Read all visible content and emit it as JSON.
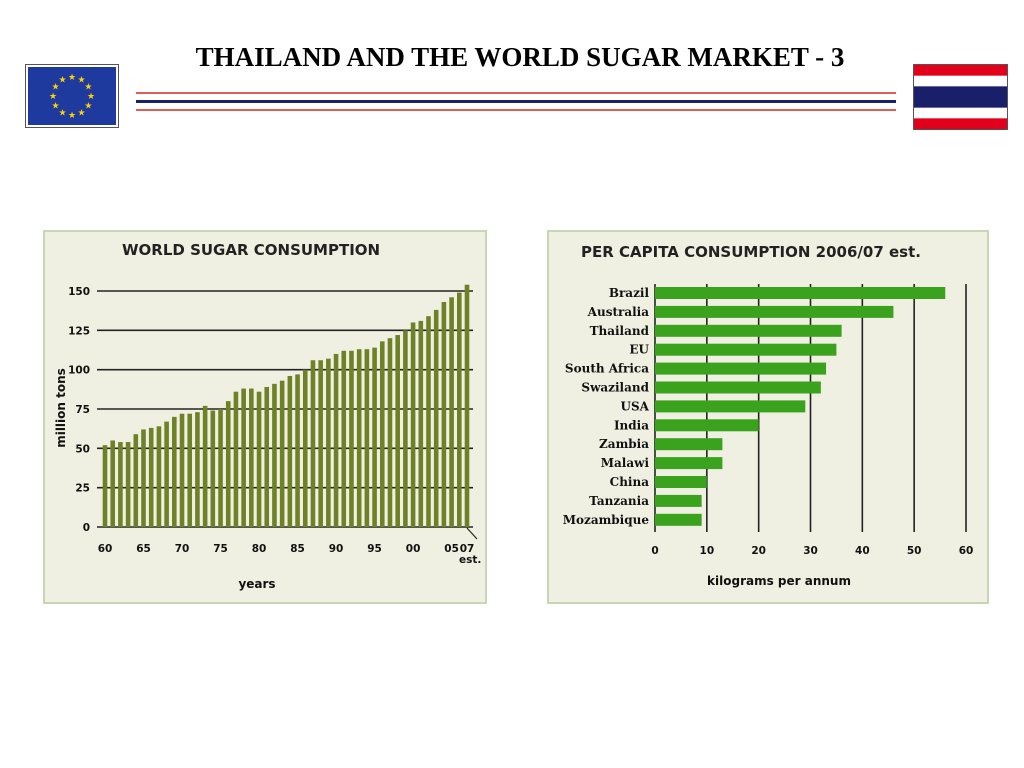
{
  "page": {
    "title": "THAILAND AND THE WORLD SUGAR MARKET - 3"
  },
  "colors": {
    "eu_blue": "#1f3a9e",
    "eu_star": "#ffd200",
    "thai_red": "#e3001b",
    "thai_blue": "#1a1f6a",
    "rule_red": "#d9261c",
    "rule_blue": "#1a1f6a",
    "panel_bg": "#f0f0e2",
    "left_bar": "#6f8126",
    "right_bar": "#3aa21c"
  },
  "chart_data": [
    {
      "type": "bar",
      "title": "WORLD SUGAR CONSUMPTION",
      "xlabel": "years",
      "ylabel": "million tons",
      "ylim": [
        0,
        150
      ],
      "yticks": [
        "0",
        "25",
        "50",
        "75",
        "100",
        "125",
        "150"
      ],
      "xticks": [
        "60",
        "65",
        "70",
        "75",
        "80",
        "85",
        "90",
        "95",
        "00",
        "05",
        "07"
      ],
      "xtick_note": "est.",
      "grid": true,
      "categories": [
        "60",
        "61",
        "62",
        "63",
        "64",
        "65",
        "66",
        "67",
        "68",
        "69",
        "70",
        "71",
        "72",
        "73",
        "74",
        "75",
        "76",
        "77",
        "78",
        "79",
        "80",
        "81",
        "82",
        "83",
        "84",
        "85",
        "86",
        "87",
        "88",
        "89",
        "90",
        "91",
        "92",
        "93",
        "94",
        "95",
        "96",
        "97",
        "98",
        "99",
        "00",
        "01",
        "02",
        "03",
        "04",
        "05",
        "06",
        "07"
      ],
      "values": [
        52,
        55,
        54,
        54,
        59,
        62,
        63,
        64,
        67,
        70,
        72,
        72,
        73,
        77,
        74,
        75,
        80,
        86,
        88,
        88,
        86,
        89,
        91,
        93,
        96,
        97,
        100,
        106,
        106,
        107,
        110,
        112,
        112,
        113,
        113,
        114,
        118,
        120,
        122,
        125,
        130,
        131,
        134,
        138,
        143,
        146,
        149,
        154
      ]
    },
    {
      "type": "bar",
      "orientation": "horizontal",
      "title": "PER CAPITA CONSUMPTION 2006/07 est.",
      "xlabel": "kilograms per annum",
      "xlim": [
        0,
        60
      ],
      "xticks": [
        "0",
        "10",
        "20",
        "30",
        "40",
        "50",
        "60"
      ],
      "grid": true,
      "categories": [
        "Brazil",
        "Australia",
        "Thailand",
        "EU",
        "South Africa",
        "Swaziland",
        "USA",
        "India",
        "Zambia",
        "Malawi",
        "China",
        "Tanzania",
        "Mozambique"
      ],
      "values": [
        56,
        46,
        36,
        35,
        33,
        32,
        29,
        20,
        13,
        13,
        10,
        9,
        9
      ]
    }
  ]
}
